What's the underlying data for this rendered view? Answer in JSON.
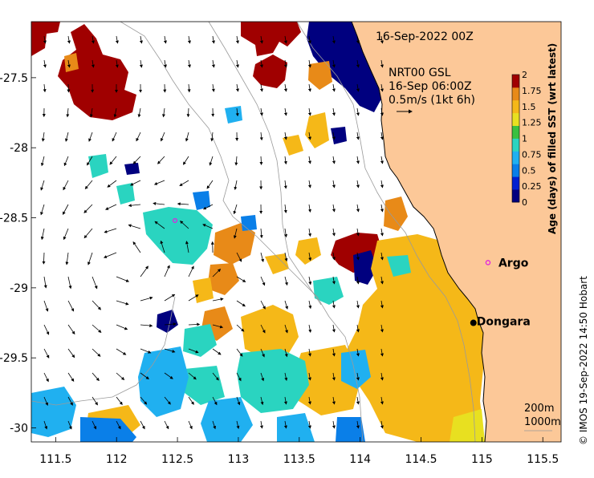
{
  "title": "16-Sep-2022 00Z",
  "vector_legend": {
    "source": "NRT00 GSL",
    "time": "16-Sep 06:00Z",
    "scale": "0.5m/s (1kt 6h)"
  },
  "colorbar": {
    "label": "Age (days) of filled SST (wrt latest)",
    "ticks": [
      "2",
      "1.75",
      "1.5",
      "1.25",
      "1",
      "0.75",
      "0.5",
      "0.25",
      "0"
    ],
    "min": 0,
    "max": 2,
    "colors": [
      "#00007f",
      "#0020d0",
      "#0a7fe8",
      "#20b0f0",
      "#2ad4c0",
      "#3ac040",
      "#e8e020",
      "#f5b818",
      "#e88a18",
      "#a00000"
    ]
  },
  "axes": {
    "x_ticks": [
      "111.5",
      "112",
      "112.5",
      "113",
      "113.5",
      "114",
      "114.5",
      "115",
      "115.5"
    ],
    "y_ticks": [
      "-27.5",
      "-28",
      "-28.5",
      "-29",
      "-29.5",
      "-30"
    ],
    "lon_range": [
      111.3,
      115.65
    ],
    "lat_range": [
      -30.1,
      -27.1
    ]
  },
  "places": [
    {
      "name": "Argo",
      "lon": 115.05,
      "lat": -28.82,
      "marker": "magenta-circle"
    },
    {
      "name": "Dongara",
      "lon": 114.93,
      "lat": -29.25,
      "marker": "black-dot"
    }
  ],
  "argo_float_2": {
    "lon": 112.48,
    "lat": -28.52
  },
  "isobaths": [
    "200m",
    "1000m"
  ],
  "credit": "© IMOS 19-Sep-2022 14:50 Hobart",
  "land_color": "#fcc898"
}
